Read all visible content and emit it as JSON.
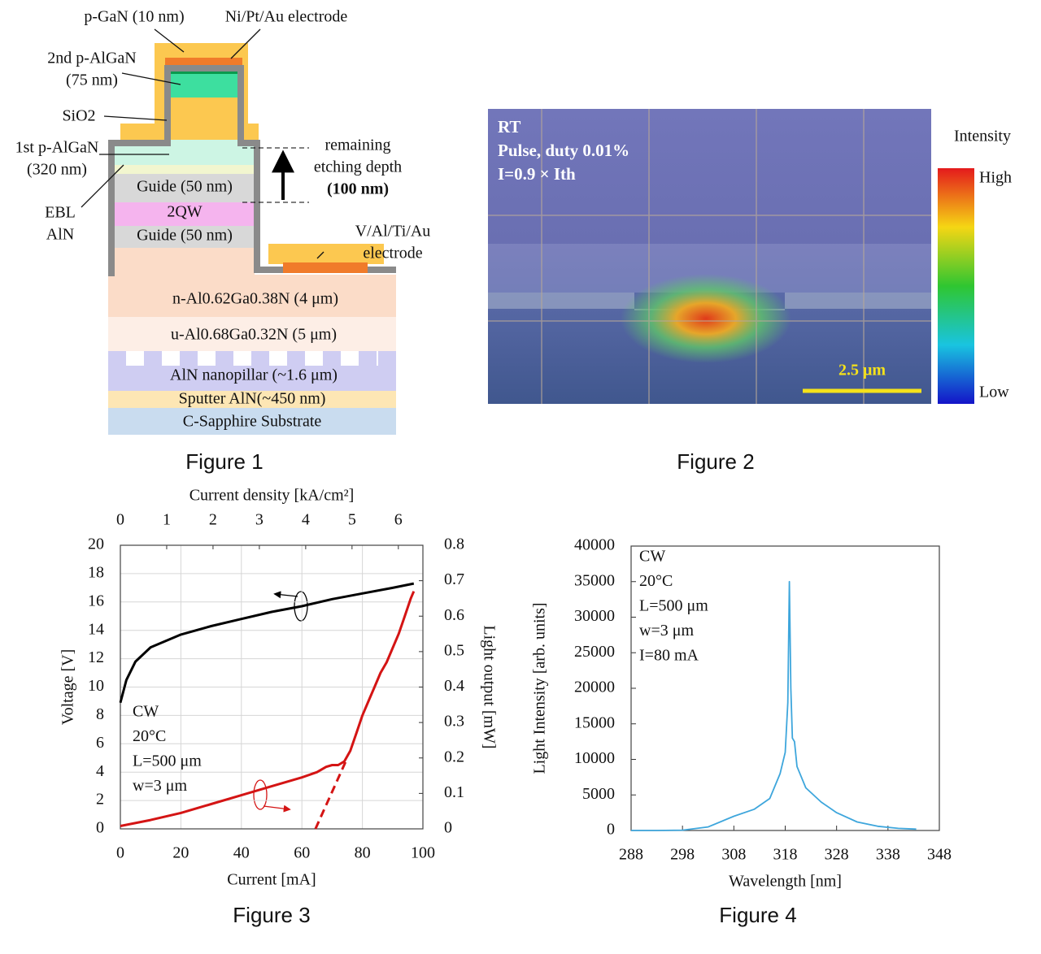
{
  "figure1": {
    "caption": "Figure 1",
    "labels": {
      "p_gan": "p-GaN (10 nm)",
      "electrode_top": "Ni/Pt/Au electrode",
      "p_algan_2": "2nd p-AlGaN",
      "p_algan_2_thickness": "(75 nm)",
      "sio2": "SiO2",
      "p_algan_1": "1st p-AlGaN",
      "p_algan_1_thickness": "(320 nm)",
      "etch_1": "remaining",
      "etch_2": "etching depth",
      "etch_3": "(100 nm)",
      "guide_upper": "Guide (50 nm)",
      "qw": "2QW",
      "guide_lower": "Guide (50 nm)",
      "ebl": "EBL",
      "aln": "AlN",
      "electrode_side_1": "V/Al/Ti/Au",
      "electrode_side_2": "electrode",
      "n_layer": "n-Al0.62Ga0.38N  (4 μm)",
      "u_layer": "u-Al0.68Ga0.32N  (5 μm)",
      "nanopillar": "AlN nanopillar (~1.6 μm)",
      "sputter": "Sputter AlN(~450 nm)",
      "substrate": "C-Sapphire Substrate"
    }
  },
  "figure2": {
    "caption": "Figure 2",
    "conditions": [
      "RT",
      "Pulse, duty 0.01%",
      "I=0.9 × Ith"
    ],
    "scale_bar": "2.5 μm",
    "colorbar": {
      "title": "Intensity",
      "high": "High",
      "low": "Low"
    }
  },
  "chart_data": [
    {
      "type": "line",
      "caption": "Figure 3",
      "xlabel": "Current [mA]",
      "x2label": "Current density [kA/cm²]",
      "ylabel": "Voltage [V]",
      "y2label": "Light output [mW]",
      "xlim": [
        0,
        100
      ],
      "xticks": [
        0,
        20,
        40,
        60,
        80,
        100
      ],
      "x2lim": [
        0,
        6.53
      ],
      "x2ticks": [
        0,
        1,
        2,
        3,
        4,
        5,
        6
      ],
      "ylim": [
        0,
        20
      ],
      "yticks": [
        0,
        2,
        4,
        6,
        8,
        10,
        12,
        14,
        16,
        18,
        20
      ],
      "y2lim": [
        0,
        0.8
      ],
      "y2ticks": [
        0,
        0.1,
        0.2,
        0.3,
        0.4,
        0.5,
        0.6,
        0.7,
        0.8
      ],
      "grid": true,
      "annotations": [
        "CW",
        "20°C",
        "L=500 μm",
        "w=3 μm"
      ],
      "series": [
        {
          "color": "#000000",
          "x": [
            0,
            2,
            5,
            10,
            20,
            30,
            40,
            50,
            60,
            70,
            80,
            90,
            97
          ],
          "values": [
            8.9,
            10.5,
            11.8,
            12.8,
            13.7,
            14.3,
            14.8,
            15.3,
            15.7,
            16.2,
            16.6,
            17.0,
            17.3
          ]
        },
        {
          "color": "#d41414",
          "axis": "y2",
          "x": [
            0,
            10,
            20,
            30,
            40,
            50,
            60,
            65,
            68,
            70,
            72,
            74,
            76,
            78,
            80,
            82,
            84,
            86,
            88,
            90,
            92,
            94,
            96,
            97
          ],
          "values": [
            0.008,
            0.025,
            0.045,
            0.07,
            0.095,
            0.12,
            0.145,
            0.16,
            0.175,
            0.18,
            0.18,
            0.19,
            0.22,
            0.27,
            0.32,
            0.36,
            0.4,
            0.44,
            0.47,
            0.51,
            0.55,
            0.6,
            0.65,
            0.67
          ]
        },
        {
          "color": "#d41414",
          "axis": "y2",
          "dashed": true,
          "x": [
            64.5,
            74.5
          ],
          "values": [
            0,
            0.19
          ]
        }
      ]
    },
    {
      "type": "line",
      "caption": "Figure 4",
      "xlabel": "Wavelength [nm]",
      "ylabel": "Light Intensity [arb. units]",
      "xlim": [
        288,
        348
      ],
      "xticks": [
        288,
        298,
        308,
        318,
        328,
        338,
        348
      ],
      "ylim": [
        0,
        40000
      ],
      "yticks": [
        0,
        5000,
        10000,
        15000,
        20000,
        25000,
        30000,
        35000,
        40000
      ],
      "grid": false,
      "annotations": [
        "CW",
        "20°C",
        "L=500 μm",
        "w=3 μm",
        "I=80 mA"
      ],
      "series": [
        {
          "color": "#3ea6dc",
          "x": [
            288,
            293,
            298,
            303,
            308,
            312,
            315,
            317,
            318,
            318.5,
            318.8,
            319.1,
            319.4,
            319.8,
            320.3,
            322,
            325,
            328,
            332,
            336,
            340,
            343.5
          ],
          "values": [
            0,
            0,
            50,
            500,
            2000,
            3000,
            4500,
            8000,
            11000,
            18000,
            35000,
            20000,
            13000,
            12500,
            9000,
            6000,
            4000,
            2500,
            1200,
            600,
            300,
            200
          ]
        }
      ]
    }
  ]
}
